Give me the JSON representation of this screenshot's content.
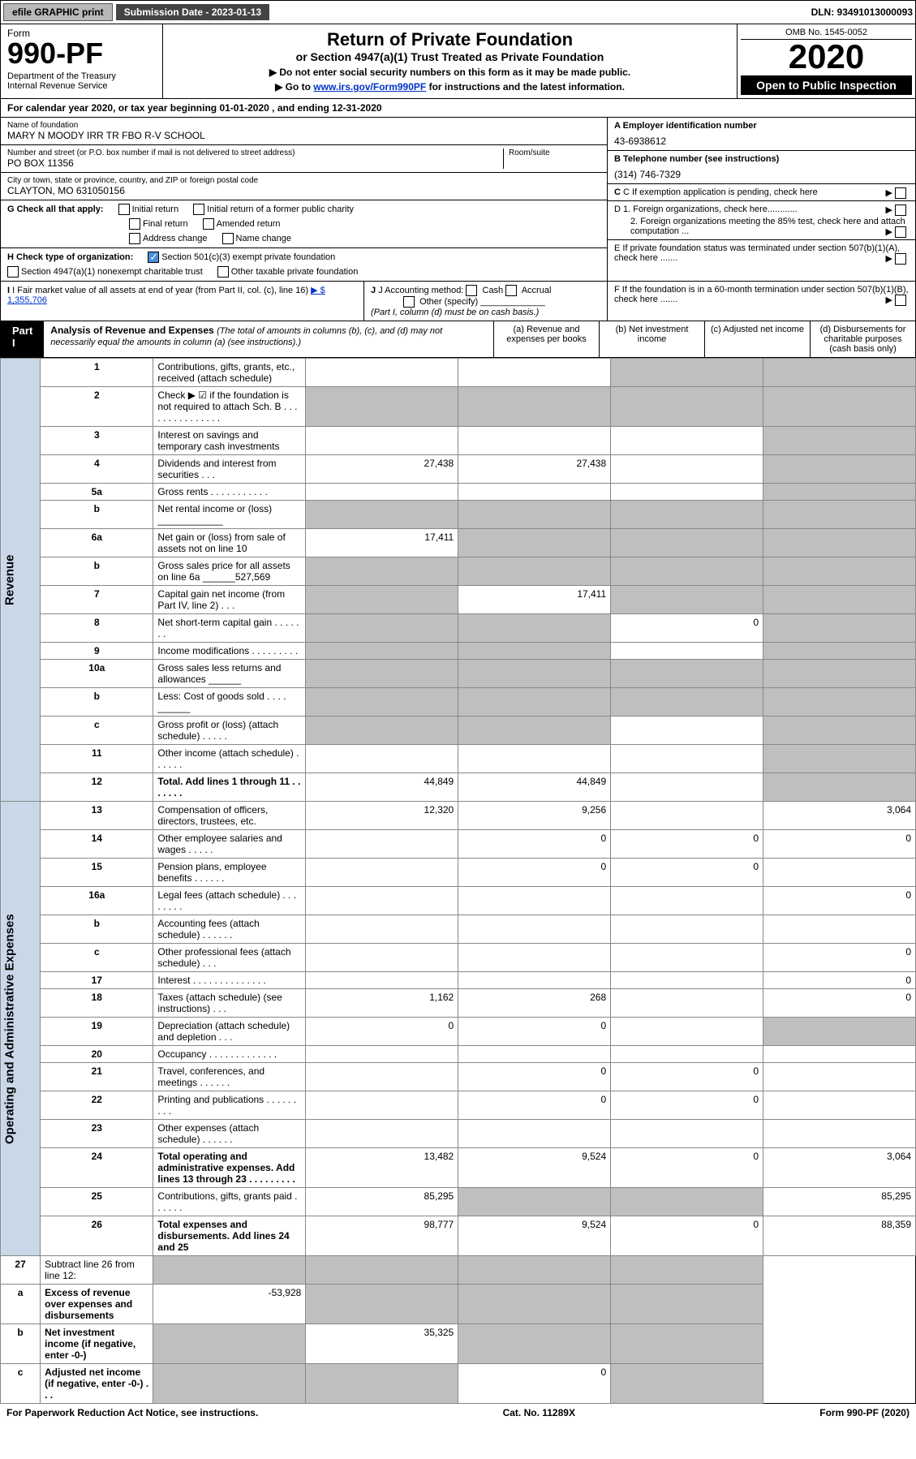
{
  "topbar": {
    "efile_btn": "efile GRAPHIC print",
    "sub_date": "Submission Date - 2023-01-13",
    "dln": "DLN: 93491013000093"
  },
  "header": {
    "form_label": "Form",
    "form_no": "990-PF",
    "dept": "Department of the Treasury\nInternal Revenue Service",
    "title": "Return of Private Foundation",
    "subtitle": "or Section 4947(a)(1) Trust Treated as Private Foundation",
    "note1": "▶ Do not enter social security numbers on this form as it may be made public.",
    "note2_pre": "▶ Go to ",
    "note2_link": "www.irs.gov/Form990PF",
    "note2_post": " for instructions and the latest information.",
    "omb": "OMB No. 1545-0052",
    "year": "2020",
    "open": "Open to Public Inspection"
  },
  "cal_year": "For calendar year 2020, or tax year beginning 01-01-2020           , and ending 12-31-2020",
  "info": {
    "name_label": "Name of foundation",
    "name": "MARY N MOODY IRR TR FBO R-V SCHOOL",
    "addr_label": "Number and street (or P.O. box number if mail is not delivered to street address)",
    "addr": "PO BOX 11356",
    "room_label": "Room/suite",
    "city_label": "City or town, state or province, country, and ZIP or foreign postal code",
    "city": "CLAYTON, MO  631050156",
    "ein_label": "A Employer identification number",
    "ein": "43-6938612",
    "phone_label": "B Telephone number (see instructions)",
    "phone": "(314) 746-7329",
    "c_label": "C If exemption application is pending, check here",
    "d1_label": "D 1. Foreign organizations, check here............",
    "d2_label": "2. Foreign organizations meeting the 85% test, check here and attach computation ...",
    "e_label": "E  If private foundation status was terminated under section 507(b)(1)(A), check here .......",
    "f_label": "F  If the foundation is in a 60-month termination under section 507(b)(1)(B), check here ......."
  },
  "g": {
    "label": "G Check all that apply:",
    "opts": [
      "Initial return",
      "Initial return of a former public charity",
      "Final return",
      "Amended return",
      "Address change",
      "Name change"
    ]
  },
  "h": {
    "label": "H Check type of organization:",
    "opt1": "Section 501(c)(3) exempt private foundation",
    "opt2": "Section 4947(a)(1) nonexempt charitable trust",
    "opt3": "Other taxable private foundation"
  },
  "i": {
    "label": "I Fair market value of all assets at end of year (from Part II, col. (c), line 16)",
    "val": "▶ $  1,355,706"
  },
  "j": {
    "label": "J Accounting method:",
    "cash": "Cash",
    "accrual": "Accrual",
    "other": "Other (specify)",
    "note": "(Part I, column (d) must be on cash basis.)"
  },
  "part1": {
    "tag": "Part I",
    "title": "Analysis of Revenue and Expenses",
    "sub": "(The total of amounts in columns (b), (c), and (d) may not necessarily equal the amounts in column (a) (see instructions).)",
    "col_a": "(a)   Revenue and expenses per books",
    "col_b": "(b)   Net investment income",
    "col_c": "(c)   Adjusted net income",
    "col_d": "(d)   Disbursements for charitable purposes (cash basis only)"
  },
  "sections": {
    "revenue": "Revenue",
    "opex": "Operating and Administrative Expenses"
  },
  "rows": [
    {
      "n": "1",
      "d": "Contributions, gifts, grants, etc., received (attach schedule)",
      "a": "",
      "b": "",
      "c": "g",
      "dd": "g"
    },
    {
      "n": "2",
      "d": "Check ▶ ☑ if the foundation is not required to attach Sch. B    .   .   .   .   .   .   .   .   .   .   .   .   .   .   .",
      "a": "g",
      "b": "g",
      "c": "g",
      "dd": "g"
    },
    {
      "n": "3",
      "d": "Interest on savings and temporary cash investments",
      "a": "",
      "b": "",
      "c": "",
      "dd": "g"
    },
    {
      "n": "4",
      "d": "Dividends and interest from securities   .   .   .",
      "a": "27,438",
      "b": "27,438",
      "c": "",
      "dd": "g"
    },
    {
      "n": "5a",
      "d": "Gross rents    .   .   .   .   .   .   .   .   .   .   .",
      "a": "",
      "b": "",
      "c": "",
      "dd": "g"
    },
    {
      "n": "b",
      "d": "Net rental income or (loss)  ____________",
      "a": "g",
      "b": "g",
      "c": "g",
      "dd": "g"
    },
    {
      "n": "6a",
      "d": "Net gain or (loss) from sale of assets not on line 10",
      "a": "17,411",
      "b": "g",
      "c": "g",
      "dd": "g"
    },
    {
      "n": "b",
      "d": "Gross sales price for all assets on line 6a ______527,569",
      "a": "g",
      "b": "g",
      "c": "g",
      "dd": "g"
    },
    {
      "n": "7",
      "d": "Capital gain net income (from Part IV, line 2)   .   .   .",
      "a": "g",
      "b": "17,411",
      "c": "g",
      "dd": "g"
    },
    {
      "n": "8",
      "d": "Net short-term capital gain   .   .   .   .   .   .   .",
      "a": "g",
      "b": "g",
      "c": "0",
      "dd": "g"
    },
    {
      "n": "9",
      "d": "Income modifications  .   .   .   .   .   .   .   .   .",
      "a": "g",
      "b": "g",
      "c": "",
      "dd": "g"
    },
    {
      "n": "10a",
      "d": "Gross sales less returns and allowances   ______",
      "a": "g",
      "b": "g",
      "c": "g",
      "dd": "g"
    },
    {
      "n": "b",
      "d": "Less: Cost of goods sold   .   .   .   .   ______",
      "a": "g",
      "b": "g",
      "c": "g",
      "dd": "g"
    },
    {
      "n": "c",
      "d": "Gross profit or (loss) (attach schedule)   .   .   .   .   .",
      "a": "g",
      "b": "g",
      "c": "",
      "dd": "g"
    },
    {
      "n": "11",
      "d": "Other income (attach schedule)   .   .   .   .   .   .",
      "a": "",
      "b": "",
      "c": "",
      "dd": "g"
    },
    {
      "n": "12",
      "d": "Total. Add lines 1 through 11   .   .   .   .   .   .   .",
      "a": "44,849",
      "b": "44,849",
      "c": "",
      "dd": "g",
      "bold": true
    }
  ],
  "rows2": [
    {
      "n": "13",
      "d": "Compensation of officers, directors, trustees, etc.",
      "a": "12,320",
      "b": "9,256",
      "c": "",
      "dd": "3,064"
    },
    {
      "n": "14",
      "d": "Other employee salaries and wages   .   .   .   .   .",
      "a": "",
      "b": "0",
      "c": "0",
      "dd": "0"
    },
    {
      "n": "15",
      "d": "Pension plans, employee benefits   .   .   .   .   .   .",
      "a": "",
      "b": "0",
      "c": "0",
      "dd": ""
    },
    {
      "n": "16a",
      "d": "Legal fees (attach schedule)  .   .   .   .   .   .   .   .",
      "a": "",
      "b": "",
      "c": "",
      "dd": "0"
    },
    {
      "n": "b",
      "d": "Accounting fees (attach schedule)  .   .   .   .   .   .",
      "a": "",
      "b": "",
      "c": "",
      "dd": ""
    },
    {
      "n": "c",
      "d": "Other professional fees (attach schedule)   .   .   .",
      "a": "",
      "b": "",
      "c": "",
      "dd": "0"
    },
    {
      "n": "17",
      "d": "Interest  .   .   .   .   .   .   .   .   .   .   .   .   .   .",
      "a": "",
      "b": "",
      "c": "",
      "dd": "0"
    },
    {
      "n": "18",
      "d": "Taxes (attach schedule) (see instructions)   .   .   .",
      "a": "1,162",
      "b": "268",
      "c": "",
      "dd": "0"
    },
    {
      "n": "19",
      "d": "Depreciation (attach schedule) and depletion   .   .   .",
      "a": "0",
      "b": "0",
      "c": "",
      "dd": "g"
    },
    {
      "n": "20",
      "d": "Occupancy  .   .   .   .   .   .   .   .   .   .   .   .   .",
      "a": "",
      "b": "",
      "c": "",
      "dd": ""
    },
    {
      "n": "21",
      "d": "Travel, conferences, and meetings  .   .   .   .   .   .",
      "a": "",
      "b": "0",
      "c": "0",
      "dd": ""
    },
    {
      "n": "22",
      "d": "Printing and publications  .   .   .   .   .   .   .   .   .",
      "a": "",
      "b": "0",
      "c": "0",
      "dd": ""
    },
    {
      "n": "23",
      "d": "Other expenses (attach schedule)  .   .   .   .   .   .",
      "a": "",
      "b": "",
      "c": "",
      "dd": ""
    },
    {
      "n": "24",
      "d": "Total operating and administrative expenses. Add lines 13 through 23   .   .   .   .   .   .   .   .   .",
      "a": "13,482",
      "b": "9,524",
      "c": "0",
      "dd": "3,064",
      "bold": true
    },
    {
      "n": "25",
      "d": "Contributions, gifts, grants paid   .   .   .   .   .   .",
      "a": "85,295",
      "b": "g",
      "c": "g",
      "dd": "85,295"
    },
    {
      "n": "26",
      "d": "Total expenses and disbursements. Add lines 24 and 25",
      "a": "98,777",
      "b": "9,524",
      "c": "0",
      "dd": "88,359",
      "bold": true
    }
  ],
  "rows3": [
    {
      "n": "27",
      "d": "Subtract line 26 from line 12:",
      "a": "g",
      "b": "g",
      "c": "g",
      "dd": "g"
    },
    {
      "n": "a",
      "d": "Excess of revenue over expenses and disbursements",
      "a": "-53,928",
      "b": "g",
      "c": "g",
      "dd": "g",
      "bold": true
    },
    {
      "n": "b",
      "d": "Net investment income (if negative, enter -0-)",
      "a": "g",
      "b": "35,325",
      "c": "g",
      "dd": "g",
      "bold": true
    },
    {
      "n": "c",
      "d": "Adjusted net income (if negative, enter -0-)   .   .   .",
      "a": "g",
      "b": "g",
      "c": "0",
      "dd": "g",
      "bold": true
    }
  ],
  "footer": {
    "left": "For Paperwork Reduction Act Notice, see instructions.",
    "mid": "Cat. No. 11289X",
    "right": "Form 990-PF (2020)"
  }
}
